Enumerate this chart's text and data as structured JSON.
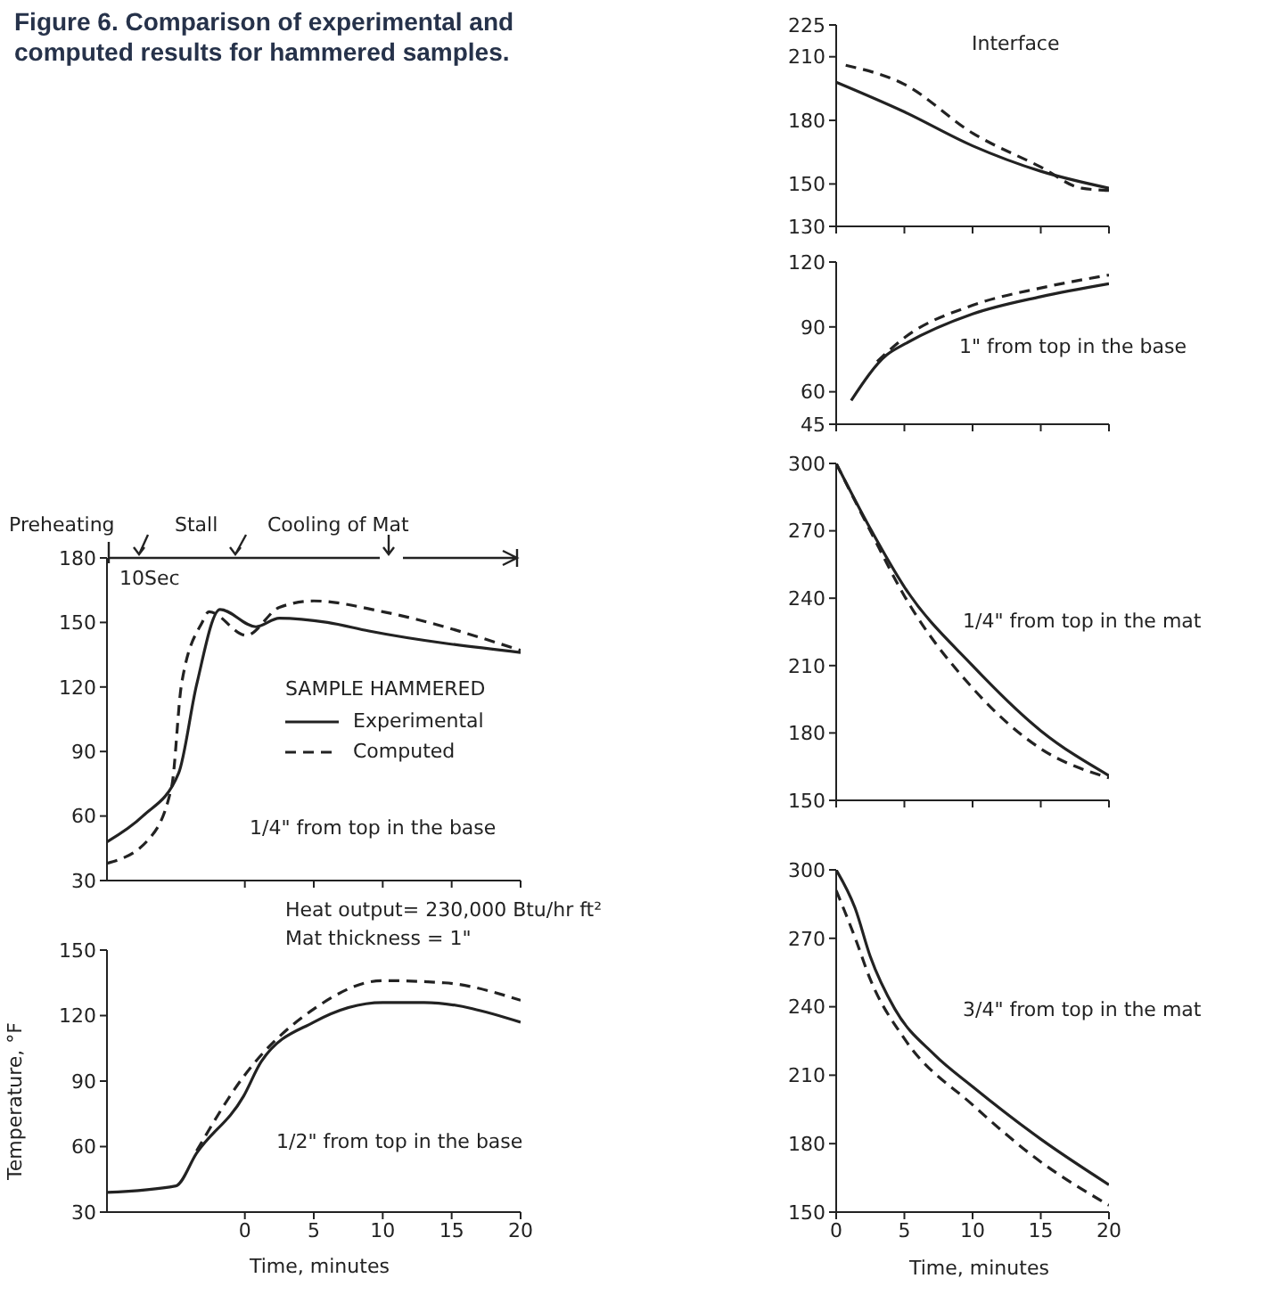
{
  "chart_data": [
    {
      "type": "line",
      "title": "Figure 6. Comparison of experimental and computed results for hammered samples.",
      "legend_title": "SAMPLE HAMMERED",
      "legend": "right",
      "xlim": [
        -10,
        20
      ],
      "xticks": [
        0,
        5,
        10,
        15,
        20
      ],
      "ylim": [
        30,
        180
      ],
      "yticks": [
        30,
        60,
        90,
        120,
        150,
        180
      ],
      "tick_labels": "y",
      "annotations": [
        "Preheating",
        "Stall",
        "Cooling of Mat",
        "10Sec",
        "1/4\" from top in the base"
      ],
      "series": [
        {
          "name": "Experimental",
          "color": "#222222",
          "line_style": "solid",
          "x": [
            -10,
            -7.4,
            -4.8,
            -3.5,
            -1.8,
            0.8,
            2.5,
            6,
            9,
            20
          ],
          "values": [
            48,
            60,
            80,
            121,
            156,
            148,
            152,
            150,
            146,
            136
          ]
        },
        {
          "name": "Computed",
          "color": "#222222",
          "line_style": "dashed",
          "x": [
            -10,
            -7,
            -5.3,
            -4.6,
            -3.1,
            -2.6,
            0.1,
            2.5,
            5,
            10,
            20
          ],
          "values": [
            38,
            49,
            74,
            121,
            150,
            155,
            144,
            157,
            160,
            155,
            137
          ]
        }
      ]
    },
    {
      "type": "line",
      "xlabel": "Time, minutes",
      "ylabel": "Temperature, °F",
      "xlim": [
        -10,
        20
      ],
      "xticks": [
        0,
        5,
        10,
        15,
        20
      ],
      "ylim": [
        30,
        150
      ],
      "yticks": [
        30,
        60,
        90,
        120,
        150
      ],
      "annotations": [
        "Heat output= 230,000 Btu/hr ft²",
        "Mat thickness = 1\"",
        "1/2\" from top in the base"
      ],
      "series": [
        {
          "color": "#222222",
          "line_style": "solid",
          "x": [
            -10,
            -5,
            -3.5,
            -0.1,
            1.2,
            5,
            10,
            13,
            20
          ],
          "values": [
            39,
            42,
            57,
            83,
            99,
            117,
            126,
            126,
            117
          ]
        },
        {
          "color": "#222222",
          "line_style": "dashed",
          "x": [
            -3.5,
            -0.1,
            5,
            10,
            14.5,
            20
          ],
          "values": [
            58,
            92,
            123,
            136,
            135,
            127
          ]
        }
      ]
    },
    {
      "type": "line",
      "xlim": [
        0,
        20
      ],
      "xticks": [
        0,
        5,
        10,
        15,
        20
      ],
      "ylim": [
        130,
        225
      ],
      "yticks": [
        130,
        150,
        180,
        210,
        225
      ],
      "tick_labels": "y",
      "annotations": [
        "Interface"
      ],
      "series": [
        {
          "color": "#222222",
          "line_style": "solid",
          "x": [
            0,
            5,
            10,
            15,
            20
          ],
          "values": [
            198,
            184,
            168,
            156,
            148
          ]
        },
        {
          "color": "#222222",
          "line_style": "dashed",
          "x": [
            0.7,
            5,
            10,
            15,
            18,
            20
          ],
          "values": [
            206,
            197,
            174,
            158,
            148,
            147
          ]
        }
      ]
    },
    {
      "type": "line",
      "xlim": [
        0,
        20
      ],
      "xticks": [
        0,
        5,
        10,
        15,
        20
      ],
      "ylim": [
        45,
        120
      ],
      "yticks": [
        45,
        60,
        90,
        120
      ],
      "tick_labels": "y",
      "annotations": [
        "1\" from top in the base"
      ],
      "series": [
        {
          "color": "#222222",
          "line_style": "solid",
          "x": [
            1.1,
            3.7,
            5,
            10,
            15,
            20
          ],
          "values": [
            56,
            77,
            82,
            96,
            104,
            110
          ]
        },
        {
          "color": "#222222",
          "line_style": "dashed",
          "x": [
            3,
            5,
            10,
            15,
            20
          ],
          "values": [
            74,
            85,
            100,
            108,
            114
          ]
        }
      ]
    },
    {
      "type": "line",
      "xlim": [
        0,
        20
      ],
      "xticks": [
        0,
        5,
        10,
        15,
        20
      ],
      "ylim": [
        150,
        300
      ],
      "yticks": [
        150,
        180,
        210,
        240,
        270,
        300
      ],
      "tick_labels": "y",
      "annotations": [
        "1/4\" from top in the mat"
      ],
      "series": [
        {
          "color": "#222222",
          "line_style": "solid",
          "x": [
            0,
            2.5,
            5,
            10,
            15,
            20
          ],
          "values": [
            300,
            271,
            245,
            210,
            181,
            161
          ]
        },
        {
          "color": "#222222",
          "line_style": "dashed",
          "x": [
            0,
            2.5,
            5,
            10,
            15,
            20
          ],
          "values": [
            300,
            270,
            241,
            200,
            173,
            160
          ]
        }
      ]
    },
    {
      "type": "line",
      "xlabel": "Time, minutes",
      "xlim": [
        0,
        20
      ],
      "xticks": [
        0,
        5,
        10,
        15,
        20
      ],
      "ylim": [
        150,
        300
      ],
      "yticks": [
        150,
        180,
        210,
        240,
        270,
        300
      ],
      "annotations": [
        "3/4\" from top in the mat"
      ],
      "series": [
        {
          "color": "#222222",
          "line_style": "solid",
          "x": [
            0,
            1.4,
            2.5,
            4.3,
            7.2,
            10,
            15,
            20
          ],
          "values": [
            300,
            283,
            262,
            239,
            219,
            205,
            182,
            162
          ]
        },
        {
          "color": "#222222",
          "line_style": "dashed",
          "x": [
            0,
            1.4,
            2.5,
            5,
            10,
            15,
            20
          ],
          "values": [
            291,
            270,
            252,
            226,
            197,
            172,
            153
          ]
        }
      ]
    }
  ]
}
